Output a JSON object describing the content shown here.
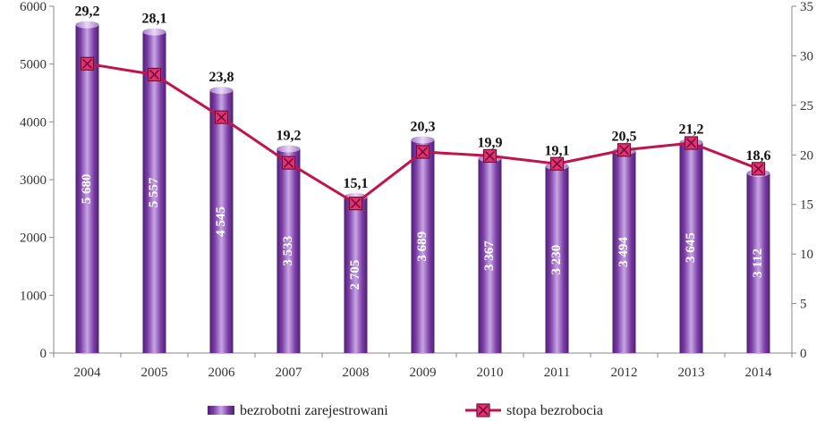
{
  "chart_data": {
    "type": "bar+line",
    "categories": [
      "2004",
      "2005",
      "2006",
      "2007",
      "2008",
      "2009",
      "2010",
      "2011",
      "2012",
      "2013",
      "2014"
    ],
    "series": [
      {
        "name": "bezrobotni zarejestrowani",
        "type": "bar",
        "axis": "left",
        "values": [
          5680,
          5557,
          4545,
          3533,
          2705,
          3689,
          3367,
          3230,
          3494,
          3645,
          3112
        ],
        "labels": [
          "5 680",
          "5 557",
          "4 545",
          "3 533",
          "2 705",
          "3 689",
          "3 367",
          "3 230",
          "3 494",
          "3 645",
          "3 112"
        ]
      },
      {
        "name": "stopa bezrobocia",
        "type": "line",
        "axis": "right",
        "values": [
          29.2,
          28.1,
          23.8,
          19.2,
          15.1,
          20.3,
          19.9,
          19.1,
          20.5,
          21.2,
          18.6
        ],
        "labels": [
          "29,2",
          "28,1",
          "23,8",
          "19,2",
          "15,1",
          "20,3",
          "19,9",
          "19,1",
          "20,5",
          "21,2",
          "18,6"
        ]
      }
    ],
    "y_left": {
      "range": [
        0,
        6000
      ],
      "ticks": [
        0,
        1000,
        2000,
        3000,
        4000,
        5000,
        6000
      ]
    },
    "y_right": {
      "range": [
        0,
        35
      ],
      "ticks": [
        0,
        5,
        10,
        15,
        20,
        25,
        30,
        35
      ]
    },
    "legend": "bottom",
    "grid": false,
    "colors": {
      "bar": "#7b3fa6",
      "bar_light": "#c9a6e4",
      "bar_dark": "#4e1f73",
      "line": "#c0154b",
      "marker_fill": "#e0347a"
    }
  }
}
